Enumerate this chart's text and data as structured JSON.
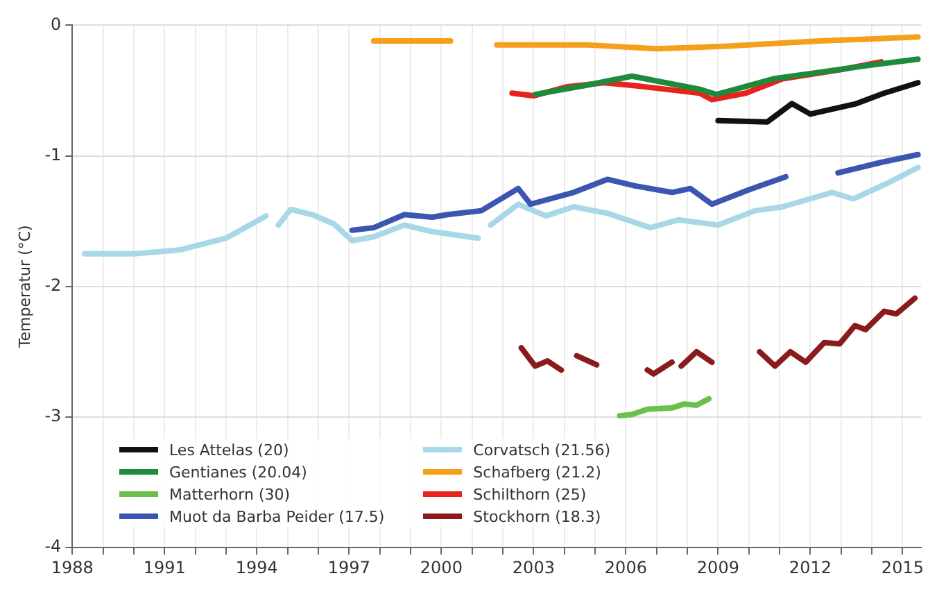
{
  "chart_data": {
    "type": "line",
    "ylabel": "Temperatur (°C)",
    "xlim": [
      1988,
      2015.6
    ],
    "ylim": [
      -4,
      0
    ],
    "xticks": [
      {
        "value": 1988,
        "label": "1988"
      },
      {
        "value": 1989,
        "label": null
      },
      {
        "value": 1990,
        "label": null
      },
      {
        "value": 1991,
        "label": "1991"
      },
      {
        "value": 1992,
        "label": null
      },
      {
        "value": 1993,
        "label": null
      },
      {
        "value": 1994,
        "label": "1994"
      },
      {
        "value": 1995,
        "label": null
      },
      {
        "value": 1996,
        "label": null
      },
      {
        "value": 1997,
        "label": "1997"
      },
      {
        "value": 1998,
        "label": null
      },
      {
        "value": 1999,
        "label": null
      },
      {
        "value": 2000,
        "label": "2000"
      },
      {
        "value": 2001,
        "label": null
      },
      {
        "value": 2002,
        "label": null
      },
      {
        "value": 2003,
        "label": "2003"
      },
      {
        "value": 2004,
        "label": null
      },
      {
        "value": 2005,
        "label": null
      },
      {
        "value": 2006,
        "label": "2006"
      },
      {
        "value": 2007,
        "label": null
      },
      {
        "value": 2008,
        "label": null
      },
      {
        "value": 2009,
        "label": "2009"
      },
      {
        "value": 2010,
        "label": null
      },
      {
        "value": 2011,
        "label": null
      },
      {
        "value": 2012,
        "label": "2012"
      },
      {
        "value": 2013,
        "label": null
      },
      {
        "value": 2014,
        "label": null
      },
      {
        "value": 2015,
        "label": "2015"
      }
    ],
    "yticks": [
      -4,
      -3,
      -2,
      -1,
      0
    ],
    "grid": true,
    "legend": "bottom left",
    "marker": "none",
    "line_style": "solid",
    "series": [
      {
        "name": "Les Attelas (20)",
        "color": "#111111",
        "x": [
          2009,
          2010.6,
          2011.4,
          2012,
          2013.5,
          2014.4,
          2015.5
        ],
        "values": [
          -0.73,
          -0.74,
          -0.6,
          -0.68,
          -0.6,
          -0.52,
          -0.44
        ]
      },
      {
        "name": "Gentianes (20.04)",
        "color": "#1e8a3c",
        "x": [
          2003.05,
          2004.7,
          2006.2,
          2007.3,
          2008.4,
          2008.95,
          2010.8,
          2012.3,
          2013.8,
          2015.5
        ],
        "values": [
          -0.53,
          -0.46,
          -0.39,
          -0.44,
          -0.49,
          -0.53,
          -0.41,
          -0.36,
          -0.31,
          -0.26
        ]
      },
      {
        "name": "Matterhorn (30)",
        "color": "#6cc04a",
        "x": [
          2005.8,
          2006.2,
          2006.7,
          2007.5,
          2007.9,
          2008.3,
          2008.7
        ],
        "values": [
          -2.99,
          -2.98,
          -2.94,
          -2.93,
          -2.9,
          -2.91,
          -2.86
        ]
      },
      {
        "name": "Muot da Barba Peider (17.5)",
        "color": "#3a56b0",
        "x": [
          1997.1,
          1997.8,
          1998.8,
          1999.7,
          2000.2,
          2001.3,
          2002.5,
          2002.9,
          2004.3,
          2005.4,
          2006.3,
          2007.5,
          2008.1,
          2008.8,
          2010,
          2011.2,
          2012,
          2012.9,
          2014.3,
          2015.5
        ],
        "values": [
          -1.57,
          -1.55,
          -1.45,
          -1.47,
          -1.45,
          -1.42,
          -1.25,
          -1.37,
          -1.28,
          -1.18,
          -1.23,
          -1.28,
          -1.25,
          -1.37,
          -1.26,
          -1.16,
          null,
          -1.13,
          -1.05,
          -0.99
        ]
      },
      {
        "name": "Corvatsch (21.56)",
        "color": "#a8d8e8",
        "x": [
          1988.4,
          1990,
          1991.5,
          1993,
          1994.3,
          1994.5,
          1994.7,
          1995.1,
          1995.8,
          1996.5,
          1997.1,
          1997.8,
          1998.8,
          1999.7,
          2001.2,
          2001.4,
          2001.6,
          2002.5,
          2003.4,
          2004.3,
          2005.4,
          2006.8,
          2007.7,
          2009,
          2010.2,
          2011.1,
          2012.7,
          2013.4,
          2014.5,
          2015.5
        ],
        "values": [
          -1.75,
          -1.75,
          -1.72,
          -1.63,
          -1.46,
          null,
          -1.53,
          -1.41,
          -1.45,
          -1.52,
          -1.65,
          -1.62,
          -1.53,
          -1.58,
          -1.63,
          null,
          -1.53,
          -1.37,
          -1.46,
          -1.39,
          -1.44,
          -1.55,
          -1.49,
          -1.53,
          -1.42,
          -1.39,
          -1.28,
          -1.33,
          -1.21,
          -1.09
        ]
      },
      {
        "name": "Schafberg (21.2)",
        "color": "#f5a01a",
        "x": [
          1997.8,
          2000.3,
          2001,
          2001.8,
          2004.7,
          2007,
          2009.3,
          2012.3,
          2015.5
        ],
        "values": [
          -0.12,
          -0.12,
          null,
          -0.15,
          -0.15,
          -0.18,
          -0.16,
          -0.12,
          -0.09
        ]
      },
      {
        "name": "Schilthorn (25)",
        "color": "#e8221c",
        "x": [
          2002.3,
          2003,
          2004.1,
          2005.3,
          2006.2,
          2007.3,
          2008.4,
          2008.8,
          2009.9,
          2011.1,
          2013,
          2014.3
        ],
        "values": [
          -0.52,
          -0.54,
          -0.47,
          -0.44,
          -0.46,
          -0.49,
          -0.52,
          -0.57,
          -0.52,
          -0.41,
          -0.34,
          -0.28
        ]
      },
      {
        "name": "Stockhorn (18.3)",
        "color": "#8b1a1a",
        "x": [
          2002.6,
          2003.05,
          2003.45,
          2003.9,
          2004.15,
          2004.4,
          2005.05,
          2005.9,
          2006.7,
          2006.9,
          2007.5,
          2007.65,
          2007.8,
          2008.3,
          2008.8,
          2009.6,
          2010.35,
          2010.85,
          2011.35,
          2011.85,
          2012.45,
          2012.95,
          2013.45,
          2013.8,
          2014.4,
          2014.8,
          2015.4
        ],
        "values": [
          -2.47,
          -2.61,
          -2.57,
          -2.64,
          null,
          -2.53,
          -2.6,
          null,
          -2.64,
          -2.67,
          -2.58,
          null,
          -2.61,
          -2.5,
          -2.58,
          null,
          -2.5,
          -2.61,
          -2.5,
          -2.58,
          -2.43,
          -2.44,
          -2.3,
          -2.33,
          -2.19,
          -2.21,
          -2.09
        ]
      }
    ]
  }
}
